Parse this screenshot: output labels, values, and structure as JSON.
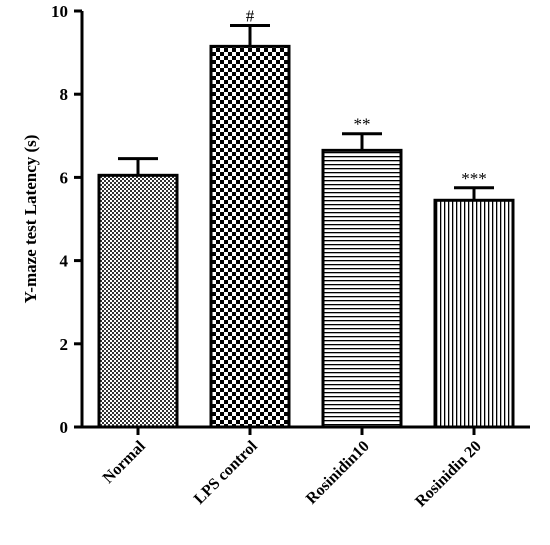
{
  "chart_data": {
    "type": "bar",
    "title": "",
    "xlabel": "",
    "ylabel": "Y-maze test Latency (s)",
    "ylim": [
      0,
      10
    ],
    "yticks": [
      0,
      2,
      4,
      6,
      8,
      10
    ],
    "categories": [
      "Normal",
      "LPS control",
      "Rosinidin10",
      "Rosinidin 20"
    ],
    "values": [
      6.05,
      9.15,
      6.65,
      5.45
    ],
    "errors": [
      0.4,
      0.5,
      0.4,
      0.3
    ],
    "significance": [
      "",
      "#",
      "**",
      "***"
    ],
    "patterns": [
      "fine-checker",
      "coarse-checker",
      "horizontal-lines",
      "vertical-lines"
    ],
    "grid": false,
    "legend": "none"
  }
}
